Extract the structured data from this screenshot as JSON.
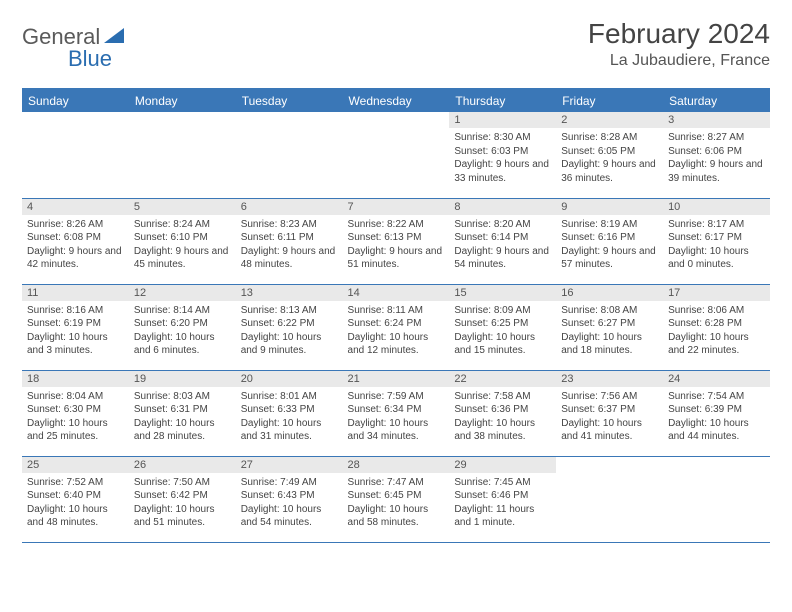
{
  "logo": {
    "part1": "General",
    "part2": "Blue"
  },
  "title": "February 2024",
  "location": "La Jubaudiere, France",
  "colors": {
    "header_bg": "#3a77b7",
    "header_text": "#ffffff",
    "daynum_bg": "#e9e9e9",
    "row_border": "#3a77b7",
    "body_text": "#444444",
    "logo_gray": "#5a5a5a",
    "logo_blue": "#2a6db0"
  },
  "weekdays": [
    "Sunday",
    "Monday",
    "Tuesday",
    "Wednesday",
    "Thursday",
    "Friday",
    "Saturday"
  ],
  "weeks": [
    [
      null,
      null,
      null,
      null,
      {
        "n": "1",
        "sr": "8:30 AM",
        "ss": "6:03 PM",
        "dl": "9 hours and 33 minutes."
      },
      {
        "n": "2",
        "sr": "8:28 AM",
        "ss": "6:05 PM",
        "dl": "9 hours and 36 minutes."
      },
      {
        "n": "3",
        "sr": "8:27 AM",
        "ss": "6:06 PM",
        "dl": "9 hours and 39 minutes."
      }
    ],
    [
      {
        "n": "4",
        "sr": "8:26 AM",
        "ss": "6:08 PM",
        "dl": "9 hours and 42 minutes."
      },
      {
        "n": "5",
        "sr": "8:24 AM",
        "ss": "6:10 PM",
        "dl": "9 hours and 45 minutes."
      },
      {
        "n": "6",
        "sr": "8:23 AM",
        "ss": "6:11 PM",
        "dl": "9 hours and 48 minutes."
      },
      {
        "n": "7",
        "sr": "8:22 AM",
        "ss": "6:13 PM",
        "dl": "9 hours and 51 minutes."
      },
      {
        "n": "8",
        "sr": "8:20 AM",
        "ss": "6:14 PM",
        "dl": "9 hours and 54 minutes."
      },
      {
        "n": "9",
        "sr": "8:19 AM",
        "ss": "6:16 PM",
        "dl": "9 hours and 57 minutes."
      },
      {
        "n": "10",
        "sr": "8:17 AM",
        "ss": "6:17 PM",
        "dl": "10 hours and 0 minutes."
      }
    ],
    [
      {
        "n": "11",
        "sr": "8:16 AM",
        "ss": "6:19 PM",
        "dl": "10 hours and 3 minutes."
      },
      {
        "n": "12",
        "sr": "8:14 AM",
        "ss": "6:20 PM",
        "dl": "10 hours and 6 minutes."
      },
      {
        "n": "13",
        "sr": "8:13 AM",
        "ss": "6:22 PM",
        "dl": "10 hours and 9 minutes."
      },
      {
        "n": "14",
        "sr": "8:11 AM",
        "ss": "6:24 PM",
        "dl": "10 hours and 12 minutes."
      },
      {
        "n": "15",
        "sr": "8:09 AM",
        "ss": "6:25 PM",
        "dl": "10 hours and 15 minutes."
      },
      {
        "n": "16",
        "sr": "8:08 AM",
        "ss": "6:27 PM",
        "dl": "10 hours and 18 minutes."
      },
      {
        "n": "17",
        "sr": "8:06 AM",
        "ss": "6:28 PM",
        "dl": "10 hours and 22 minutes."
      }
    ],
    [
      {
        "n": "18",
        "sr": "8:04 AM",
        "ss": "6:30 PM",
        "dl": "10 hours and 25 minutes."
      },
      {
        "n": "19",
        "sr": "8:03 AM",
        "ss": "6:31 PM",
        "dl": "10 hours and 28 minutes."
      },
      {
        "n": "20",
        "sr": "8:01 AM",
        "ss": "6:33 PM",
        "dl": "10 hours and 31 minutes."
      },
      {
        "n": "21",
        "sr": "7:59 AM",
        "ss": "6:34 PM",
        "dl": "10 hours and 34 minutes."
      },
      {
        "n": "22",
        "sr": "7:58 AM",
        "ss": "6:36 PM",
        "dl": "10 hours and 38 minutes."
      },
      {
        "n": "23",
        "sr": "7:56 AM",
        "ss": "6:37 PM",
        "dl": "10 hours and 41 minutes."
      },
      {
        "n": "24",
        "sr": "7:54 AM",
        "ss": "6:39 PM",
        "dl": "10 hours and 44 minutes."
      }
    ],
    [
      {
        "n": "25",
        "sr": "7:52 AM",
        "ss": "6:40 PM",
        "dl": "10 hours and 48 minutes."
      },
      {
        "n": "26",
        "sr": "7:50 AM",
        "ss": "6:42 PM",
        "dl": "10 hours and 51 minutes."
      },
      {
        "n": "27",
        "sr": "7:49 AM",
        "ss": "6:43 PM",
        "dl": "10 hours and 54 minutes."
      },
      {
        "n": "28",
        "sr": "7:47 AM",
        "ss": "6:45 PM",
        "dl": "10 hours and 58 minutes."
      },
      {
        "n": "29",
        "sr": "7:45 AM",
        "ss": "6:46 PM",
        "dl": "11 hours and 1 minute."
      },
      null,
      null
    ]
  ],
  "labels": {
    "sunrise": "Sunrise:",
    "sunset": "Sunset:",
    "daylight": "Daylight:"
  }
}
